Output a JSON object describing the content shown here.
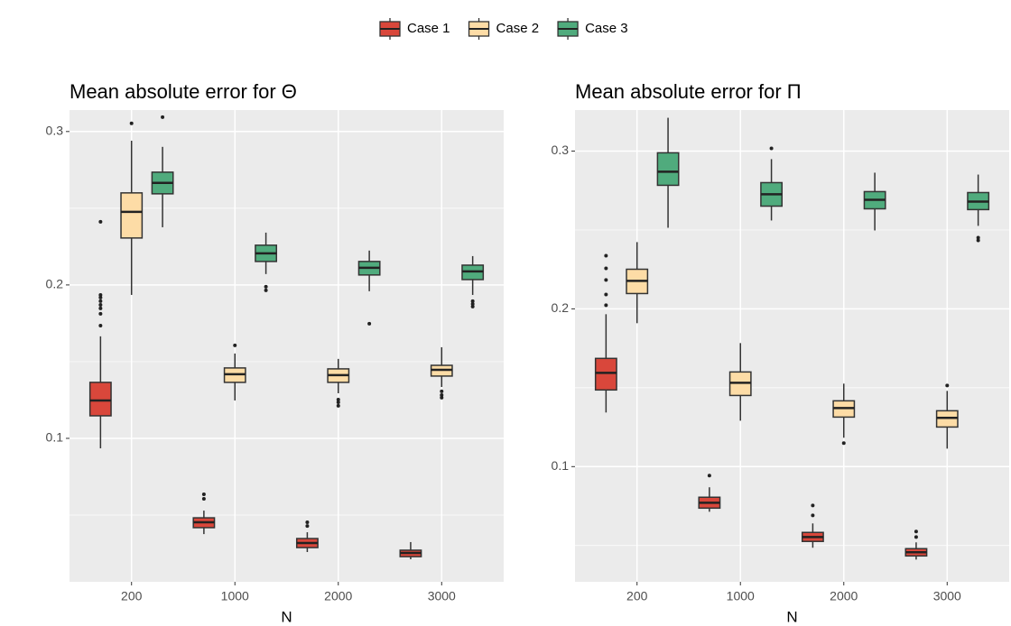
{
  "chart_data": [
    {
      "type": "box",
      "title": "Mean absolute error for Θ",
      "x_label": "N",
      "categories": [
        "200",
        "1000",
        "2000",
        "3000"
      ],
      "ylim": [
        0.0065,
        0.314
      ],
      "yticks": [
        0.1,
        0.2,
        0.3
      ],
      "y_minor_ticks": [
        0.05,
        0.15,
        0.25
      ],
      "grid": true,
      "legend": "top",
      "series": [
        {
          "name": "Case 1",
          "color": "#d9473b",
          "values": [
            {
              "min": 0.0935,
              "q1": 0.1147,
              "median": 0.1247,
              "q3": 0.1365,
              "max": 0.1665,
              "outliers": [
                0.1935,
                0.1918,
                0.1894,
                0.187,
                0.1847,
                0.1812,
                0.1735,
                0.2412
              ]
            },
            {
              "min": 0.0376,
              "q1": 0.0418,
              "median": 0.0453,
              "q3": 0.0482,
              "max": 0.0529,
              "outliers": [
                0.0606,
                0.0635
              ]
            },
            {
              "min": 0.0259,
              "q1": 0.0288,
              "median": 0.0318,
              "q3": 0.0347,
              "max": 0.0388,
              "outliers": [
                0.0429,
                0.0453
              ]
            },
            {
              "min": 0.0212,
              "q1": 0.0229,
              "median": 0.0253,
              "q3": 0.0271,
              "max": 0.0324,
              "outliers": []
            }
          ]
        },
        {
          "name": "Case 2",
          "color": "#fddca6",
          "values": [
            {
              "min": 0.1935,
              "q1": 0.2306,
              "median": 0.2476,
              "q3": 0.26,
              "max": 0.294,
              "outliers": [
                0.3053
              ]
            },
            {
              "min": 0.1247,
              "q1": 0.1365,
              "median": 0.1418,
              "q3": 0.1459,
              "max": 0.1553,
              "outliers": [
                0.1606
              ]
            },
            {
              "min": 0.1294,
              "q1": 0.1365,
              "median": 0.1412,
              "q3": 0.1453,
              "max": 0.1518,
              "outliers": [
                0.1253,
                0.1235,
                0.1212
              ]
            },
            {
              "min": 0.1335,
              "q1": 0.1406,
              "median": 0.1447,
              "q3": 0.1476,
              "max": 0.1594,
              "outliers": [
                0.1306,
                0.1282,
                0.1265
              ]
            }
          ]
        },
        {
          "name": "Case 3",
          "color": "#50ab7d",
          "values": [
            {
              "min": 0.2376,
              "q1": 0.2594,
              "median": 0.2665,
              "q3": 0.2735,
              "max": 0.29,
              "outliers": [
                0.3094
              ]
            },
            {
              "min": 0.2071,
              "q1": 0.2153,
              "median": 0.2206,
              "q3": 0.2259,
              "max": 0.2341,
              "outliers": [
                0.1988,
                0.1965
              ]
            },
            {
              "min": 0.1959,
              "q1": 0.2065,
              "median": 0.2112,
              "q3": 0.2153,
              "max": 0.2224,
              "outliers": [
                0.1747
              ]
            },
            {
              "min": 0.1935,
              "q1": 0.2035,
              "median": 0.2088,
              "q3": 0.2129,
              "max": 0.2188,
              "outliers": [
                0.1894,
                0.1876,
                0.1859
              ]
            }
          ]
        }
      ]
    },
    {
      "type": "box",
      "title": "Mean absolute error for Π",
      "x_label": "N",
      "categories": [
        "200",
        "1000",
        "2000",
        "3000"
      ],
      "ylim": [
        0.027,
        0.326
      ],
      "yticks": [
        0.1,
        0.2,
        0.3
      ],
      "y_minor_ticks": [
        0.05,
        0.15,
        0.25
      ],
      "grid": true,
      "series": [
        {
          "name": "Case 1",
          "color": "#d9473b",
          "values": [
            {
              "min": 0.1343,
              "q1": 0.1486,
              "median": 0.1594,
              "q3": 0.1686,
              "max": 0.1966,
              "outliers": [
                0.2337,
                0.2257,
                0.2183,
                0.2091,
                0.2023
              ]
            },
            {
              "min": 0.0714,
              "q1": 0.0737,
              "median": 0.0771,
              "q3": 0.0806,
              "max": 0.0869,
              "outliers": [
                0.0943
              ]
            },
            {
              "min": 0.0486,
              "q1": 0.0526,
              "median": 0.0554,
              "q3": 0.0583,
              "max": 0.064,
              "outliers": [
                0.0754,
                0.0691
              ]
            },
            {
              "min": 0.0411,
              "q1": 0.0434,
              "median": 0.0457,
              "q3": 0.048,
              "max": 0.052,
              "outliers": [
                0.0589,
                0.0554
              ]
            }
          ]
        },
        {
          "name": "Case 2",
          "color": "#fddca6",
          "values": [
            {
              "min": 0.1909,
              "q1": 0.2097,
              "median": 0.2177,
              "q3": 0.2251,
              "max": 0.2423,
              "outliers": []
            },
            {
              "min": 0.1291,
              "q1": 0.1451,
              "median": 0.1531,
              "q3": 0.16,
              "max": 0.1783,
              "outliers": []
            },
            {
              "min": 0.1183,
              "q1": 0.1314,
              "median": 0.1371,
              "q3": 0.1417,
              "max": 0.1526,
              "outliers": [
                0.1149
              ]
            },
            {
              "min": 0.1114,
              "q1": 0.1251,
              "median": 0.1309,
              "q3": 0.1354,
              "max": 0.148,
              "outliers": [
                0.1514
              ]
            }
          ]
        },
        {
          "name": "Case 3",
          "color": "#50ab7d",
          "values": [
            {
              "min": 0.2514,
              "q1": 0.2783,
              "median": 0.2869,
              "q3": 0.2989,
              "max": 0.3211,
              "outliers": []
            },
            {
              "min": 0.256,
              "q1": 0.2651,
              "median": 0.2726,
              "q3": 0.28,
              "max": 0.2949,
              "outliers": [
                0.3017
              ]
            },
            {
              "min": 0.2497,
              "q1": 0.2634,
              "median": 0.2691,
              "q3": 0.2743,
              "max": 0.2863,
              "outliers": []
            },
            {
              "min": 0.2526,
              "q1": 0.2629,
              "median": 0.268,
              "q3": 0.2737,
              "max": 0.2851,
              "outliers": [
                0.2451,
                0.2434
              ]
            }
          ]
        }
      ]
    }
  ]
}
